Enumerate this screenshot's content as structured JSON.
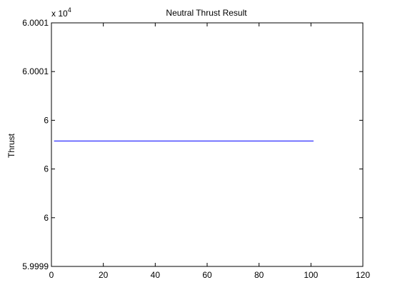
{
  "chart_data": {
    "type": "line",
    "title": "Neutral Thrust Result",
    "xlabel": "",
    "ylabel": "Thrust",
    "y_exponent_label": "x 10",
    "y_exponent": "4",
    "xlim": [
      0,
      120
    ],
    "ylim": [
      59999.5,
      60001.5
    ],
    "x_ticks": [
      0,
      20,
      40,
      60,
      80,
      100,
      120
    ],
    "x_tick_labels": [
      "0",
      "20",
      "40",
      "60",
      "80",
      "100",
      "120"
    ],
    "y_ticks": [
      59999.5,
      59999.9,
      60000.3,
      60000.7,
      60001.1,
      60001.5
    ],
    "y_tick_labels": [
      "5.9999",
      "6",
      "6",
      "6",
      "6.0001",
      "6.0001"
    ],
    "grid": false,
    "series": [
      {
        "color": "#0000ff",
        "x": [
          1,
          101
        ],
        "y": [
          60000.53,
          60000.53
        ]
      }
    ]
  }
}
